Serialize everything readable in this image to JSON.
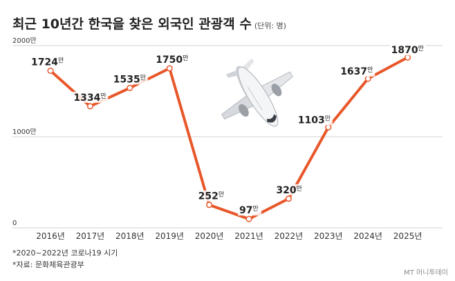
{
  "title": "최근 10년간 한국을 찾은 외국인 관광객 수",
  "unit_note": "(단위: 명)",
  "footnotes": [
    "*2020~2022년 코로나19 시기",
    "*자료: 문화체육관광부"
  ],
  "source_credit": "MT 머니투데이",
  "colors": {
    "line": "#E8572A",
    "grid": "#d0d0d0",
    "text": "#222222"
  },
  "icons": {
    "illustration": "airplane-icon"
  },
  "chart_data": {
    "type": "line",
    "title": "최근 10년간 한국을 찾은 외국인 관광객 수",
    "xlabel": "",
    "ylabel": "",
    "unit": "만",
    "ylim": [
      0,
      2000
    ],
    "yticks": [
      "0",
      "1000만",
      "2000만"
    ],
    "grid": true,
    "categories": [
      "2016년",
      "2017년",
      "2018년",
      "2019년",
      "2020년",
      "2021년",
      "2022년",
      "2023년",
      "2024년",
      "2025년"
    ],
    "values": [
      1724,
      1334,
      1535,
      1750,
      252,
      97,
      320,
      1103,
      1637,
      1870
    ]
  }
}
